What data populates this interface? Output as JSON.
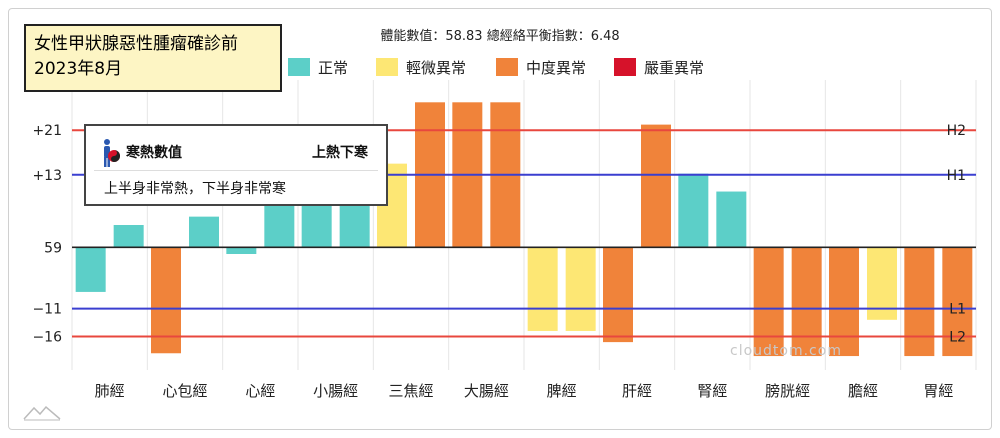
{
  "title_box": {
    "line1": "女性甲狀腺惡性腫瘤確診前",
    "line2": "2023年8月"
  },
  "subtitle": "體能數值：58.83 總經絡平衡指數：6.48",
  "tooltip": {
    "label": "寒熱數值",
    "value": "上熱下寒",
    "description": "上半身非常熱，下半身非常寒",
    "icon": "yin-yang-person-icon"
  },
  "watermark": "cloudtom.com",
  "chart_data": {
    "type": "bar",
    "baseline": 59,
    "y_range": [
      -22,
      30
    ],
    "categories": [
      "肺經",
      "心包經",
      "心經",
      "小腸經",
      "三焦經",
      "大腸經",
      "脾經",
      "肝經",
      "腎經",
      "膀胱經",
      "膽經",
      "胃經"
    ],
    "legend": [
      {
        "name": "正常",
        "color": "#5ccfc8"
      },
      {
        "name": "輕微異常",
        "color": "#fde774"
      },
      {
        "name": "中度異常",
        "color": "#f0833a"
      },
      {
        "name": "嚴重異常",
        "color": "#d6122a"
      }
    ],
    "bars": [
      {
        "category": "肺經",
        "offsets": [
          -8,
          4
        ],
        "levels": [
          "正常",
          "正常"
        ]
      },
      {
        "category": "心包經",
        "offsets": [
          -19,
          5.5
        ],
        "levels": [
          "中度異常",
          "正常"
        ]
      },
      {
        "category": "心經",
        "offsets": [
          -1.2,
          10
        ],
        "levels": [
          "正常",
          "正常"
        ]
      },
      {
        "category": "小腸經",
        "offsets": [
          10,
          10
        ],
        "levels": [
          "正常",
          "正常"
        ]
      },
      {
        "category": "三焦經",
        "offsets": [
          15,
          26
        ],
        "levels": [
          "輕微異常",
          "中度異常"
        ]
      },
      {
        "category": "大腸經",
        "offsets": [
          26,
          26
        ],
        "levels": [
          "中度異常",
          "中度異常"
        ]
      },
      {
        "category": "脾經",
        "offsets": [
          -15,
          -15
        ],
        "levels": [
          "輕微異常",
          "輕微異常"
        ]
      },
      {
        "category": "肝經",
        "offsets": [
          -17,
          22
        ],
        "levels": [
          "中度異常",
          "中度異常"
        ]
      },
      {
        "category": "腎經",
        "offsets": [
          13.2,
          10
        ],
        "levels": [
          "正常",
          "正常"
        ]
      },
      {
        "category": "膀胱經",
        "offsets": [
          -19.5,
          -19.5
        ],
        "levels": [
          "中度異常",
          "中度異常"
        ]
      },
      {
        "category": "膽經",
        "offsets": [
          -19.5,
          -13
        ],
        "levels": [
          "中度異常",
          "輕微異常"
        ]
      },
      {
        "category": "胃經",
        "offsets": [
          -19.5,
          -19.5
        ],
        "levels": [
          "中度異常",
          "中度異常"
        ]
      }
    ],
    "reference_lines": [
      {
        "tick": "+21",
        "offset": 21,
        "name": "H2",
        "color": "#e8473e"
      },
      {
        "tick": "+13",
        "offset": 13,
        "name": "H1",
        "color": "#3a3fd0"
      },
      {
        "tick": "59",
        "offset": 0,
        "name": "",
        "color": "#222222"
      },
      {
        "tick": "−11",
        "offset": -11,
        "name": "L1",
        "color": "#3a3fd0"
      },
      {
        "tick": "−16",
        "offset": -16,
        "name": "L2",
        "color": "#e8473e"
      }
    ],
    "grid": "vertical"
  }
}
